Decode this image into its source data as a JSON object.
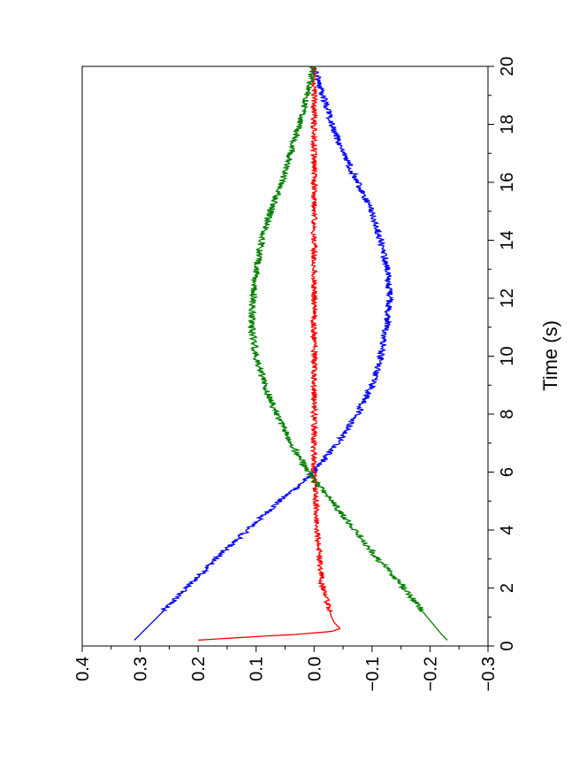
{
  "chart_data": {
    "type": "line",
    "orientation": "rotated-90",
    "title": "",
    "xlabel": "Time (s)",
    "ylabel": "",
    "xlim": [
      0,
      20
    ],
    "ylim": [
      -0.3,
      0.4
    ],
    "xticks": [
      0,
      2,
      4,
      6,
      8,
      10,
      12,
      14,
      16,
      18,
      20
    ],
    "xtick_labels": [
      "0",
      "2",
      "4",
      "6",
      "8",
      "10",
      "12",
      "14",
      "16",
      "18",
      "20"
    ],
    "yticks": [
      0.4,
      0.3,
      0.2,
      0.1,
      0.0,
      -0.1,
      -0.2,
      -0.3
    ],
    "ytick_labels": [
      "0.4",
      "0.3",
      "0.2",
      "0.1",
      "0.0",
      "−0.1",
      "−0.2",
      "−0.3"
    ],
    "grid": false,
    "legend": "none",
    "series": [
      {
        "color": "#0000ff",
        "noise": 0.006,
        "points": [
          [
            0.2,
            0.31
          ],
          [
            1,
            0.27
          ],
          [
            2,
            0.22
          ],
          [
            3,
            0.17
          ],
          [
            4,
            0.115
          ],
          [
            5,
            0.06
          ],
          [
            5.8,
            0.01
          ],
          [
            6,
            0.0
          ],
          [
            7,
            -0.04
          ],
          [
            8,
            -0.075
          ],
          [
            9,
            -0.1
          ],
          [
            10,
            -0.115
          ],
          [
            11,
            -0.125
          ],
          [
            12,
            -0.13
          ],
          [
            13,
            -0.127
          ],
          [
            14,
            -0.115
          ],
          [
            15,
            -0.1
          ],
          [
            16,
            -0.075
          ],
          [
            17,
            -0.05
          ],
          [
            18,
            -0.03
          ],
          [
            19,
            -0.015
          ],
          [
            20,
            0.0
          ]
        ]
      },
      {
        "color": "#ff0000",
        "noise": 0.005,
        "points": [
          [
            0.2,
            0.2
          ],
          [
            0.3,
            0.12
          ],
          [
            0.4,
            0.03
          ],
          [
            0.5,
            -0.03
          ],
          [
            0.6,
            -0.045
          ],
          [
            0.8,
            -0.035
          ],
          [
            1,
            -0.03
          ],
          [
            2,
            -0.015
          ],
          [
            3,
            -0.01
          ],
          [
            4,
            -0.005
          ],
          [
            5,
            -0.003
          ],
          [
            6,
            0.0
          ],
          [
            10,
            0.0
          ],
          [
            14,
            0.0
          ],
          [
            18,
            0.0
          ],
          [
            20,
            0.0
          ]
        ]
      },
      {
        "color": "#008000",
        "noise": 0.006,
        "points": [
          [
            0.2,
            -0.23
          ],
          [
            0.4,
            -0.22
          ],
          [
            1,
            -0.195
          ],
          [
            2,
            -0.155
          ],
          [
            3,
            -0.11
          ],
          [
            4,
            -0.07
          ],
          [
            5,
            -0.03
          ],
          [
            6,
            0.01
          ],
          [
            7,
            0.04
          ],
          [
            8,
            0.065
          ],
          [
            9,
            0.085
          ],
          [
            10,
            0.1
          ],
          [
            11,
            0.108
          ],
          [
            12,
            0.105
          ],
          [
            13,
            0.1
          ],
          [
            14,
            0.09
          ],
          [
            15,
            0.075
          ],
          [
            16,
            0.055
          ],
          [
            17,
            0.04
          ],
          [
            18,
            0.025
          ],
          [
            19,
            0.012
          ],
          [
            20,
            0.0
          ]
        ]
      }
    ]
  }
}
